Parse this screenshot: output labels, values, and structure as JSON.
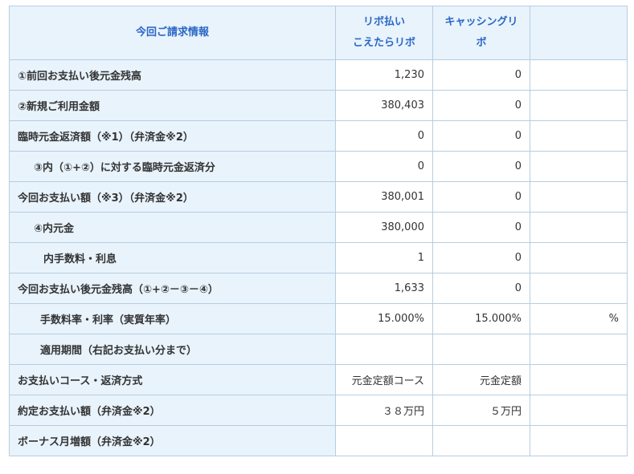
{
  "header": {
    "title": "今回ご請求情報",
    "col_revo_line1": "リボ払い",
    "col_revo_line2": "こえたらリボ",
    "col_cash_line1": "キャッシングリ",
    "col_cash_line2": "ボ",
    "col_extra": ""
  },
  "rows": [
    {
      "label": "①前回お支払い後元金残高",
      "revo": "1,230",
      "cash": "0",
      "extra": ""
    },
    {
      "label": "②新規ご利用金額",
      "revo": "380,403",
      "cash": "0",
      "extra": ""
    },
    {
      "label": "臨時元金返済額（※1）（弁済金※2）",
      "revo": "0",
      "cash": "0",
      "extra": ""
    },
    {
      "label": "③内（①+②）に対する臨時元金返済分",
      "revo": "0",
      "cash": "0",
      "extra": ""
    },
    {
      "label": "今回お支払い額（※3）（弁済金※2）",
      "revo": "380,001",
      "cash": "0",
      "extra": ""
    },
    {
      "label": "④内元金",
      "revo": "380,000",
      "cash": "0",
      "extra": ""
    },
    {
      "label": "内手数料・利息",
      "revo": "1",
      "cash": "0",
      "extra": ""
    },
    {
      "label": "今回お支払い後元金残高（①+②－③－④）",
      "revo": "1,633",
      "cash": "0",
      "extra": ""
    },
    {
      "label": "手数料率・利率（実質年率）",
      "revo": "15.000%",
      "cash": "15.000%",
      "extra": "%"
    },
    {
      "label": "適用期間（右記お支払い分まで）",
      "revo": "",
      "cash": "",
      "extra": ""
    },
    {
      "label": "お支払いコース・返済方式",
      "revo": "元金定額コース",
      "cash": "元金定額",
      "extra": ""
    },
    {
      "label": "約定お支払い額（弁済金※2）",
      "revo": "３８万円",
      "cash": "５万円",
      "extra": ""
    },
    {
      "label": "ボーナス月増額（弁済金※2）",
      "revo": "",
      "cash": "",
      "extra": ""
    }
  ]
}
